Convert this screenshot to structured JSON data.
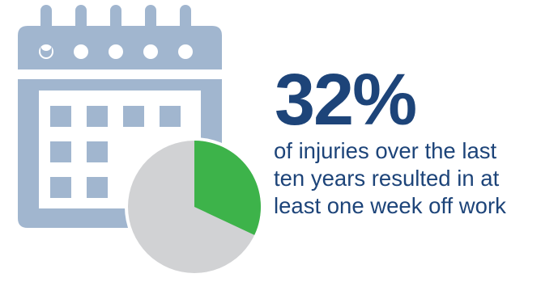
{
  "statistic": {
    "value": "32%",
    "caption_lines": [
      "of injuries over the last",
      "ten years resulted in at",
      "least one week off work"
    ],
    "pie_share": 0.32
  },
  "icons": {
    "calendar": "calendar-icon",
    "pie": "pie-chart-icon"
  },
  "colors": {
    "stat_value": "#1d4479",
    "caption_text": "#1d4479",
    "calendar": "#a1b6cf",
    "calendar_cells": "#a1b6cf",
    "pie_highlight": "#3db34a",
    "pie_rest": "#d1d2d4"
  }
}
